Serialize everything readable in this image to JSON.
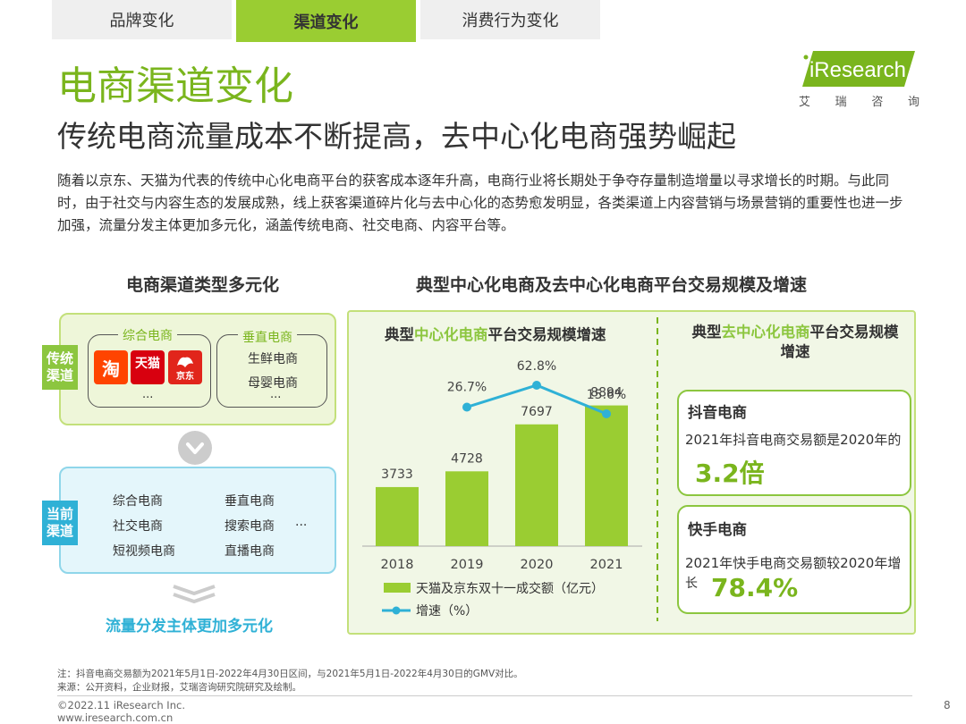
{
  "tabs": [
    {
      "label": "品牌变化",
      "active": false
    },
    {
      "label": "渠道变化",
      "active": true
    },
    {
      "label": "消费行为变化",
      "active": false
    }
  ],
  "title": "电商渠道变化",
  "subtitle": "传统电商流量成本不断提高，去中心化电商强势崛起",
  "paragraph": "随着以京东、天猫为代表的传统中心化电商平台的获客成本逐年升高，电商行业将长期处于争夺存量制造增量以寻求增长的时期。与此同时，由于社交与内容生态的发展成熟，线上获客渠道碎片化与去中心化的态势愈发明显，各类渠道上内容营销与场景营销的重要性也进一步加强，流量分发主体更加多元化，涵盖传统电商、社交电商、内容平台等。",
  "logo": {
    "text": "iResearch",
    "cn": [
      "艾",
      "瑞",
      "咨",
      "询"
    ]
  },
  "left_section": {
    "title": "电商渠道类型多元化",
    "traditional": {
      "tag": "传统\n渠道",
      "panel1_label": "综合电商",
      "panel2_label": "垂直电商",
      "apps": [
        {
          "name": "taobao-icon",
          "glyph": "淘",
          "color": "#ff4400"
        },
        {
          "name": "tmall-icon",
          "glyph": "天猫",
          "color": "#d8000f"
        },
        {
          "name": "jd-icon",
          "glyph": "京东",
          "color": "#e1251b"
        }
      ],
      "panel1_more": "...",
      "vertical_items": [
        "生鲜电商",
        "母婴电商"
      ],
      "panel2_more": "..."
    },
    "current": {
      "tag": "当前\n渠道",
      "col1": [
        "综合电商",
        "社交电商",
        "短视频电商"
      ],
      "col2": [
        "垂直电商",
        "搜索电商",
        "直播电商"
      ],
      "more": "..."
    },
    "flow_text": "流量分发主体更加多元化"
  },
  "right_section": {
    "title": "典型中心化电商及去中心化电商平台交易规模及增速",
    "chart_title_pre": "典型",
    "chart_title_hl": "中心化电商",
    "chart_title_post": "平台交易规模增速",
    "right_title_pre": "典型",
    "right_title_hl": "去中心化电商",
    "right_title_post": "平台交易规模",
    "right_title_line2": "增速",
    "card1": {
      "head": "抖音电商",
      "line": "2021年抖音电商交易额是2020年的",
      "value": "3.2倍"
    },
    "card2": {
      "head": "快手电商",
      "line1": "2021年快手电商交易额较2020年增",
      "line2": "长",
      "value": "78.4%"
    }
  },
  "chart_data": {
    "type": "bar",
    "categories": [
      "2018",
      "2019",
      "2020",
      "2021"
    ],
    "series": [
      {
        "name": "天猫及京东双十一成交额（亿元）",
        "type": "bar",
        "values": [
          3733,
          4728,
          7697,
          8894
        ],
        "labels": [
          "3733",
          "4728",
          "7697",
          "8894"
        ]
      },
      {
        "name": "增速（%）",
        "type": "line",
        "x": [
          "2019",
          "2020",
          "2021"
        ],
        "values": [
          26.7,
          62.8,
          15.6
        ],
        "labels": [
          "26.7%",
          "62.8%",
          "15.6%"
        ]
      }
    ],
    "colors": {
      "bar": "#9acd32",
      "line": "#2fb1d6"
    }
  },
  "footnotes": {
    "note": "注：抖音电商交易额为2021年5月1日-2022年4月30日区间，与2021年5月1日-2022年4月30日的GMV对比。",
    "source": "来源：公开资料，企业财报，艾瑞咨询研究院研究及绘制。"
  },
  "copyright": "©2022.11 iResearch Inc.",
  "website": "www.iresearch.com.cn",
  "page_number": "8"
}
